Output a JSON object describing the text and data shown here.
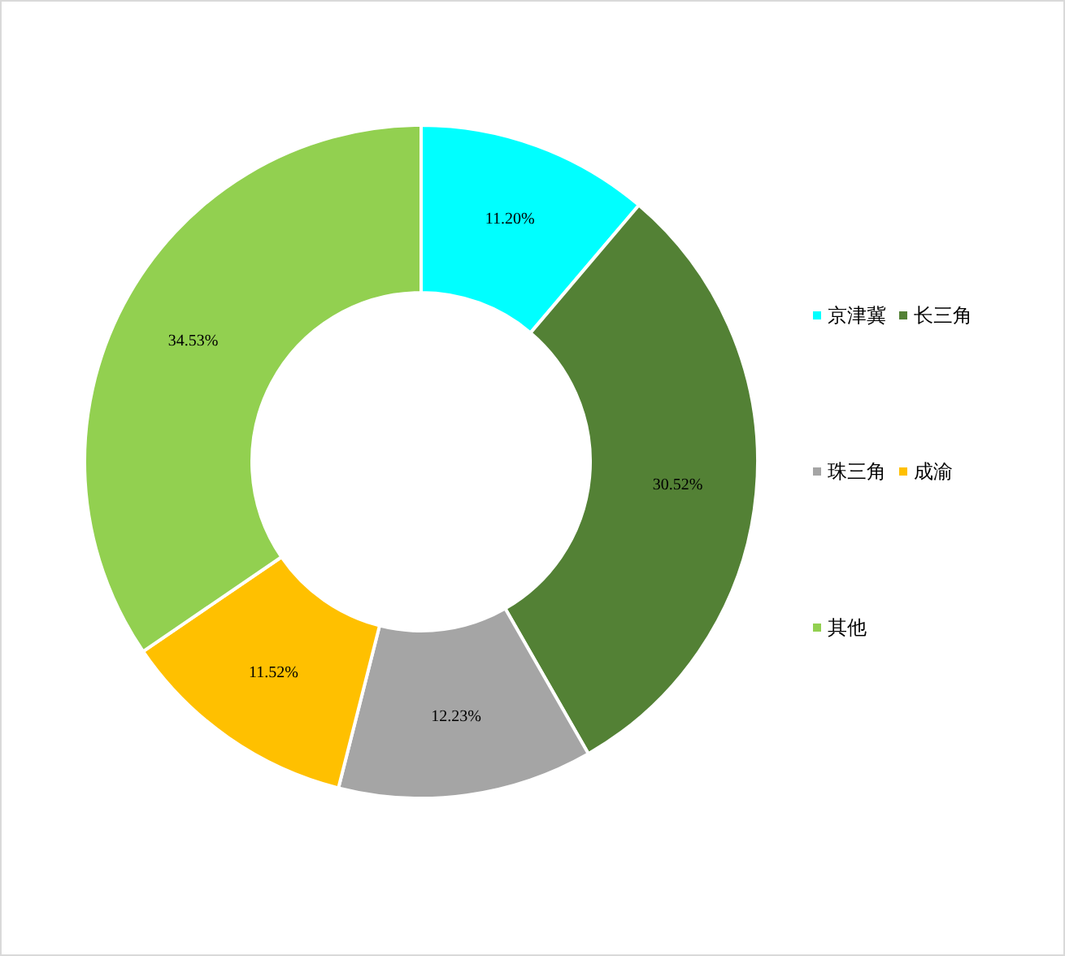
{
  "chart_data": {
    "type": "donut",
    "categories": [
      "京津冀",
      "长三角",
      "珠三角",
      "成渝",
      "其他"
    ],
    "values": [
      11.2,
      30.52,
      12.23,
      11.52,
      34.53
    ],
    "colors": [
      "#00ffff",
      "#538135",
      "#a5a5a5",
      "#ffc000",
      "#92d050"
    ],
    "value_labels": [
      "11.20%",
      "30.52%",
      "12.23%",
      "11.52%",
      "34.53%"
    ],
    "legend": "right"
  }
}
